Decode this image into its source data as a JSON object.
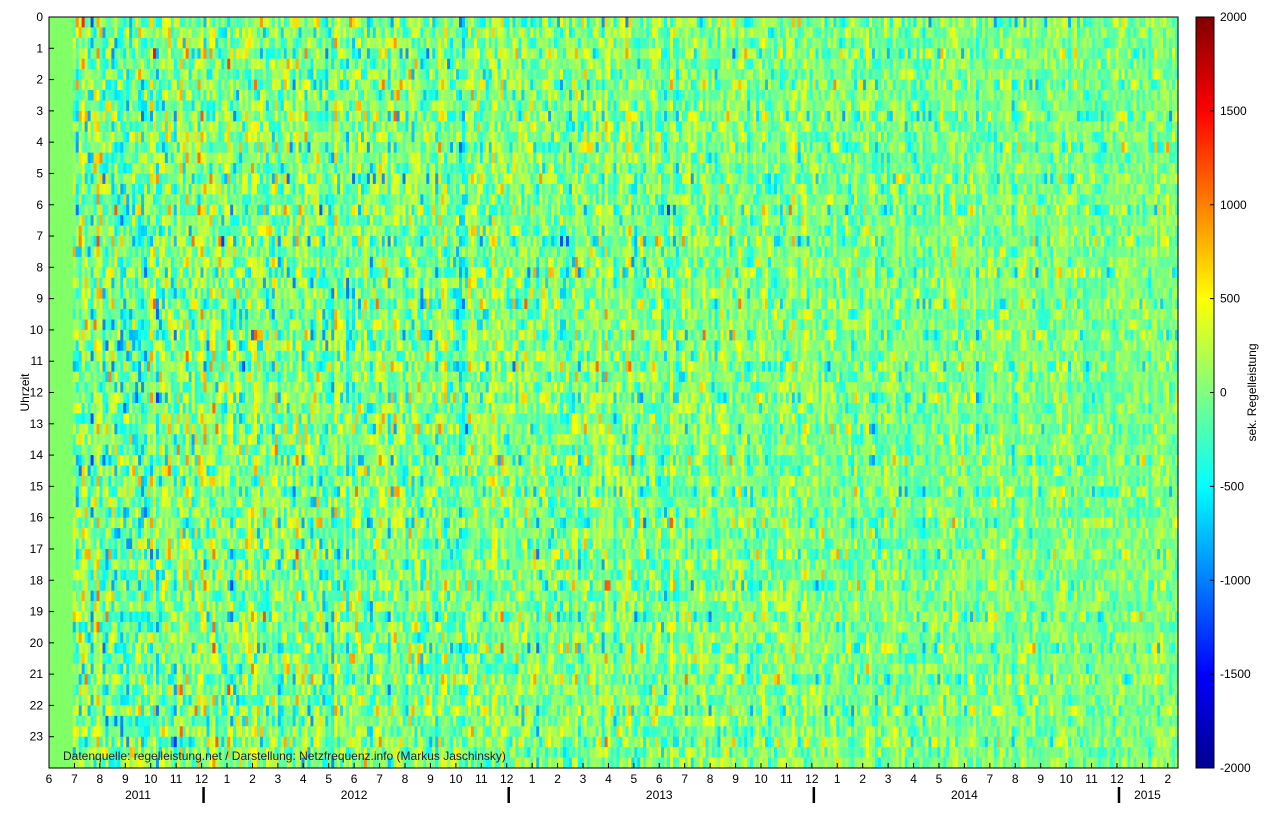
{
  "chart_data": {
    "type": "heatmap",
    "title": "",
    "ylabel": "Uhrzeit",
    "colorbar_label": "sek. Regelleistung",
    "source_note": "Datenquelle: regelleistung.net / Darstellung: Netzfrequenz.info (Markus Jaschinsky)",
    "hours": [
      "0",
      "1",
      "2",
      "3",
      "4",
      "5",
      "6",
      "7",
      "8",
      "9",
      "10",
      "11",
      "12",
      "13",
      "14",
      "15",
      "16",
      "17",
      "18",
      "19",
      "20",
      "21",
      "22",
      "23"
    ],
    "month_ticks": [
      "6",
      "7",
      "8",
      "9",
      "10",
      "11",
      "12",
      "1",
      "2",
      "3",
      "4",
      "5",
      "6",
      "7",
      "8",
      "9",
      "10",
      "11",
      "12",
      "1",
      "2",
      "3",
      "4",
      "5",
      "6",
      "7",
      "8",
      "9",
      "10",
      "11",
      "12",
      "1",
      "2",
      "3",
      "4",
      "5",
      "6",
      "7",
      "8",
      "9",
      "10",
      "11",
      "12",
      "1",
      "2"
    ],
    "years": [
      "2011",
      "2012",
      "2013",
      "2014",
      "2015"
    ],
    "colorbar_ticks": [
      "2000",
      "1500",
      "1000",
      "500",
      "0",
      "-500",
      "-1000",
      "-1500",
      "-2000"
    ],
    "clim": [
      -2000,
      2000
    ],
    "colormap": "jet",
    "x_range": [
      "2011-06",
      "2015-02"
    ],
    "y_range": [
      0,
      24
    ],
    "no_data_until": "2011-07",
    "no_data_color": "#80ff66"
  }
}
